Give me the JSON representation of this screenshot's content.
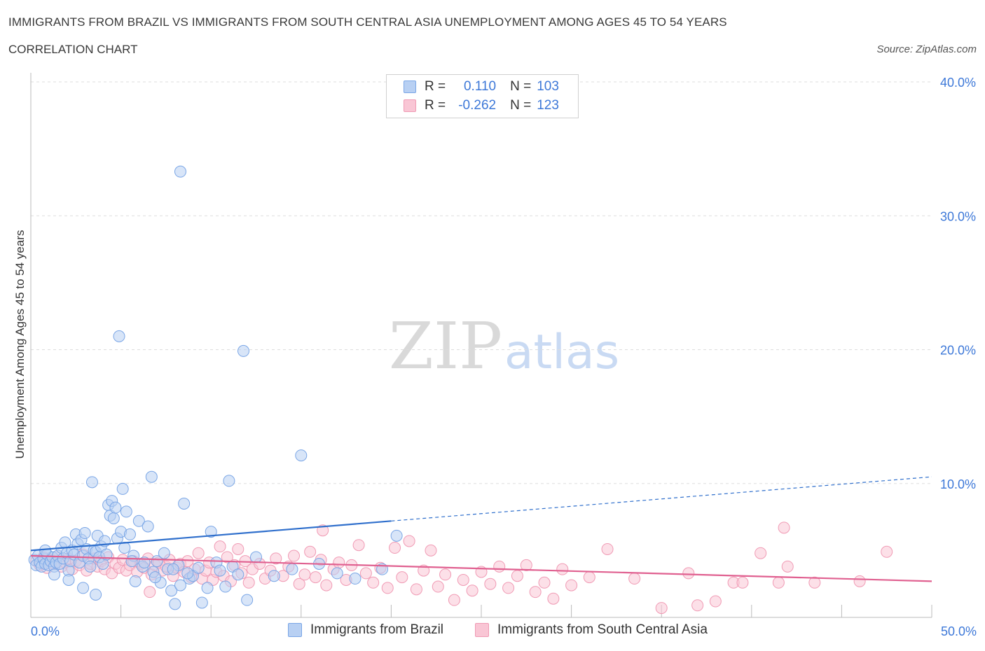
{
  "header": {
    "title": "IMMIGRANTS FROM BRAZIL VS IMMIGRANTS FROM SOUTH CENTRAL ASIA UNEMPLOYMENT AMONG AGES 45 TO 54 YEARS",
    "subtitle": "CORRELATION CHART",
    "source": "Source: ZipAtlas.com"
  },
  "watermark": {
    "zip": "ZIP",
    "atlas": "atlas"
  },
  "legend": {
    "r_label": "R =",
    "n_label": "N =",
    "rows": [
      {
        "r": "0.110",
        "n": "103"
      },
      {
        "r": "-0.262",
        "n": "123"
      }
    ]
  },
  "colors": {
    "blue_fill": "#b8d0f3",
    "blue_stroke": "#7aa6e6",
    "blue_line": "#2f6fcc",
    "pink_fill": "#f9c6d5",
    "pink_stroke": "#f09ab4",
    "pink_line": "#e06090",
    "tick_label": "#3d78d8"
  },
  "chart_data": {
    "type": "scatter",
    "title": "IMMIGRANTS FROM BRAZIL VS IMMIGRANTS FROM SOUTH CENTRAL ASIA UNEMPLOYMENT AMONG AGES 45 TO 54 YEARS",
    "xlabel": "",
    "ylabel": "Unemployment Among Ages 45 to 54 years",
    "xlim": [
      0,
      50
    ],
    "ylim": [
      0,
      40
    ],
    "x_tick_labels": [
      "0.0%",
      "50.0%"
    ],
    "y_ticks": [
      10,
      20,
      30,
      40
    ],
    "y_tick_labels": [
      "10.0%",
      "20.0%",
      "30.0%",
      "40.0%"
    ],
    "grid": true,
    "legend_position": "top-center",
    "series": [
      {
        "name": "Immigrants from Brazil",
        "r": 0.11,
        "n": 103,
        "trend": {
          "x0": 0,
          "y0": 5.0,
          "x1": 20,
          "y1": 7.2,
          "x_solid_end": 20,
          "x_dash_end": 50,
          "y_dash_end": 10.5
        },
        "points": [
          [
            0.2,
            4.3
          ],
          [
            0.3,
            3.9
          ],
          [
            0.4,
            4.6
          ],
          [
            0.5,
            4.1
          ],
          [
            0.6,
            3.8
          ],
          [
            0.7,
            4.4
          ],
          [
            0.8,
            4.0
          ],
          [
            0.9,
            4.7
          ],
          [
            1.0,
            3.9
          ],
          [
            1.1,
            4.2
          ],
          [
            1.2,
            4.5
          ],
          [
            1.3,
            3.8
          ],
          [
            1.4,
            4.1
          ],
          [
            1.5,
            4.6
          ],
          [
            1.6,
            4.0
          ],
          [
            1.7,
            5.2
          ],
          [
            1.8,
            4.4
          ],
          [
            1.9,
            5.6
          ],
          [
            2.0,
            4.8
          ],
          [
            2.1,
            3.5
          ],
          [
            2.2,
            4.2
          ],
          [
            2.3,
            5.0
          ],
          [
            2.4,
            4.7
          ],
          [
            2.5,
            6.2
          ],
          [
            2.6,
            5.5
          ],
          [
            2.7,
            4.1
          ],
          [
            2.8,
            5.8
          ],
          [
            2.9,
            4.6
          ],
          [
            3.0,
            6.3
          ],
          [
            3.1,
            5.1
          ],
          [
            3.2,
            4.4
          ],
          [
            3.3,
            3.8
          ],
          [
            3.5,
            5.0
          ],
          [
            3.6,
            4.9
          ],
          [
            3.7,
            6.1
          ],
          [
            3.8,
            4.5
          ],
          [
            3.9,
            5.3
          ],
          [
            4.0,
            4.0
          ],
          [
            4.1,
            5.7
          ],
          [
            4.2,
            4.7
          ],
          [
            4.3,
            8.4
          ],
          [
            4.4,
            7.6
          ],
          [
            4.5,
            8.7
          ],
          [
            4.6,
            7.4
          ],
          [
            4.7,
            8.2
          ],
          [
            4.8,
            5.9
          ],
          [
            5.0,
            6.4
          ],
          [
            5.1,
            9.6
          ],
          [
            5.2,
            5.2
          ],
          [
            5.3,
            7.9
          ],
          [
            5.5,
            6.2
          ],
          [
            5.7,
            4.6
          ],
          [
            5.8,
            2.7
          ],
          [
            6.0,
            7.2
          ],
          [
            6.2,
            3.8
          ],
          [
            6.5,
            6.8
          ],
          [
            6.7,
            10.5
          ],
          [
            6.8,
            3.4
          ],
          [
            7.0,
            4.2
          ],
          [
            7.2,
            2.6
          ],
          [
            7.4,
            4.8
          ],
          [
            7.6,
            3.6
          ],
          [
            7.8,
            2.0
          ],
          [
            8.0,
            1.0
          ],
          [
            8.2,
            3.9
          ],
          [
            8.3,
            2.4
          ],
          [
            8.5,
            8.5
          ],
          [
            8.8,
            2.9
          ],
          [
            9.0,
            3.1
          ],
          [
            9.3,
            3.7
          ],
          [
            9.5,
            1.1
          ],
          [
            9.8,
            2.2
          ],
          [
            10.0,
            6.4
          ],
          [
            10.3,
            4.1
          ],
          [
            10.5,
            3.5
          ],
          [
            10.8,
            2.3
          ],
          [
            11.0,
            10.2
          ],
          [
            11.2,
            3.8
          ],
          [
            11.5,
            3.2
          ],
          [
            12.0,
            1.3
          ],
          [
            12.5,
            4.5
          ],
          [
            13.5,
            3.1
          ],
          [
            14.5,
            3.6
          ],
          [
            15.0,
            12.1
          ],
          [
            16.0,
            4.0
          ],
          [
            17.0,
            3.3
          ],
          [
            18.0,
            2.9
          ],
          [
            19.5,
            3.6
          ],
          [
            20.3,
            6.1
          ],
          [
            6.3,
            4.1
          ],
          [
            2.9,
            2.2
          ],
          [
            3.6,
            1.7
          ],
          [
            1.3,
            3.2
          ],
          [
            0.8,
            5.0
          ],
          [
            4.9,
            21.0
          ],
          [
            11.8,
            19.9
          ],
          [
            8.3,
            33.3
          ],
          [
            3.4,
            10.1
          ],
          [
            8.7,
            3.3
          ],
          [
            5.6,
            4.2
          ],
          [
            6.9,
            3.0
          ],
          [
            7.9,
            3.6
          ],
          [
            2.1,
            2.8
          ]
        ]
      },
      {
        "name": "Immigrants from South Central Asia",
        "r": -0.262,
        "n": 123,
        "trend": {
          "x0": 0,
          "y0": 4.6,
          "x1": 50,
          "y1": 2.7
        },
        "points": [
          [
            0.3,
            4.2
          ],
          [
            0.5,
            3.9
          ],
          [
            0.7,
            4.5
          ],
          [
            0.9,
            3.7
          ],
          [
            1.1,
            4.3
          ],
          [
            1.3,
            4.0
          ],
          [
            1.5,
            4.6
          ],
          [
            1.7,
            3.8
          ],
          [
            1.9,
            4.1
          ],
          [
            2.1,
            4.4
          ],
          [
            2.3,
            3.6
          ],
          [
            2.5,
            4.2
          ],
          [
            2.7,
            3.9
          ],
          [
            2.9,
            4.7
          ],
          [
            3.1,
            3.5
          ],
          [
            3.3,
            4.0
          ],
          [
            3.5,
            4.4
          ],
          [
            3.7,
            3.8
          ],
          [
            3.9,
            4.2
          ],
          [
            4.1,
            3.6
          ],
          [
            4.3,
            4.5
          ],
          [
            4.5,
            3.3
          ],
          [
            4.7,
            4.0
          ],
          [
            4.9,
            3.7
          ],
          [
            5.1,
            4.3
          ],
          [
            5.3,
            3.5
          ],
          [
            5.5,
            3.9
          ],
          [
            5.7,
            4.2
          ],
          [
            5.9,
            3.4
          ],
          [
            6.1,
            4.0
          ],
          [
            6.3,
            3.7
          ],
          [
            6.5,
            4.4
          ],
          [
            6.7,
            3.2
          ],
          [
            6.9,
            3.9
          ],
          [
            7.1,
            4.1
          ],
          [
            7.3,
            3.5
          ],
          [
            7.5,
            3.8
          ],
          [
            7.7,
            4.3
          ],
          [
            7.9,
            3.1
          ],
          [
            8.1,
            3.7
          ],
          [
            8.3,
            4.0
          ],
          [
            8.5,
            3.4
          ],
          [
            8.7,
            4.2
          ],
          [
            8.9,
            3.0
          ],
          [
            9.1,
            3.6
          ],
          [
            9.3,
            4.8
          ],
          [
            9.5,
            2.9
          ],
          [
            9.7,
            3.5
          ],
          [
            9.9,
            4.1
          ],
          [
            10.1,
            2.8
          ],
          [
            10.3,
            3.4
          ],
          [
            10.5,
            5.3
          ],
          [
            10.7,
            3.1
          ],
          [
            10.9,
            4.5
          ],
          [
            11.1,
            2.7
          ],
          [
            11.3,
            3.9
          ],
          [
            11.5,
            5.1
          ],
          [
            11.7,
            3.3
          ],
          [
            11.9,
            4.2
          ],
          [
            12.1,
            2.6
          ],
          [
            12.3,
            3.6
          ],
          [
            12.7,
            4.0
          ],
          [
            13.0,
            2.9
          ],
          [
            13.3,
            3.5
          ],
          [
            13.6,
            4.4
          ],
          [
            14.0,
            3.1
          ],
          [
            14.3,
            3.8
          ],
          [
            14.6,
            4.6
          ],
          [
            14.9,
            2.5
          ],
          [
            15.2,
            3.2
          ],
          [
            15.5,
            4.9
          ],
          [
            15.8,
            3.0
          ],
          [
            16.1,
            4.3
          ],
          [
            16.4,
            2.4
          ],
          [
            16.8,
            3.6
          ],
          [
            17.1,
            4.1
          ],
          [
            17.5,
            2.8
          ],
          [
            17.8,
            3.9
          ],
          [
            18.2,
            5.4
          ],
          [
            18.6,
            3.3
          ],
          [
            19.0,
            2.6
          ],
          [
            19.4,
            3.7
          ],
          [
            19.8,
            2.2
          ],
          [
            20.2,
            5.2
          ],
          [
            20.6,
            3.0
          ],
          [
            21.0,
            5.7
          ],
          [
            21.4,
            2.1
          ],
          [
            21.8,
            3.5
          ],
          [
            22.2,
            5.0
          ],
          [
            22.6,
            2.3
          ],
          [
            23.0,
            3.2
          ],
          [
            23.5,
            1.3
          ],
          [
            24.0,
            2.8
          ],
          [
            24.5,
            2.0
          ],
          [
            25.0,
            3.4
          ],
          [
            25.5,
            2.5
          ],
          [
            26.0,
            3.8
          ],
          [
            26.5,
            2.2
          ],
          [
            27.0,
            3.1
          ],
          [
            27.5,
            3.9
          ],
          [
            28.0,
            1.9
          ],
          [
            28.5,
            2.6
          ],
          [
            29.0,
            1.4
          ],
          [
            29.5,
            3.6
          ],
          [
            30.0,
            2.4
          ],
          [
            31.0,
            3.0
          ],
          [
            32.0,
            5.1
          ],
          [
            33.5,
            2.9
          ],
          [
            35.0,
            0.7
          ],
          [
            36.5,
            3.3
          ],
          [
            37.0,
            0.9
          ],
          [
            38.0,
            1.2
          ],
          [
            39.0,
            2.6
          ],
          [
            40.5,
            4.8
          ],
          [
            41.5,
            2.6
          ],
          [
            42.0,
            3.8
          ],
          [
            43.5,
            2.6
          ],
          [
            46.0,
            2.7
          ],
          [
            47.5,
            4.9
          ],
          [
            39.5,
            2.6
          ],
          [
            41.8,
            6.7
          ],
          [
            16.2,
            6.5
          ],
          [
            6.6,
            1.9
          ]
        ]
      }
    ]
  },
  "bottom_legend": {
    "items": [
      {
        "label": "Immigrants from Brazil"
      },
      {
        "label": "Immigrants from South Central Asia"
      }
    ]
  }
}
